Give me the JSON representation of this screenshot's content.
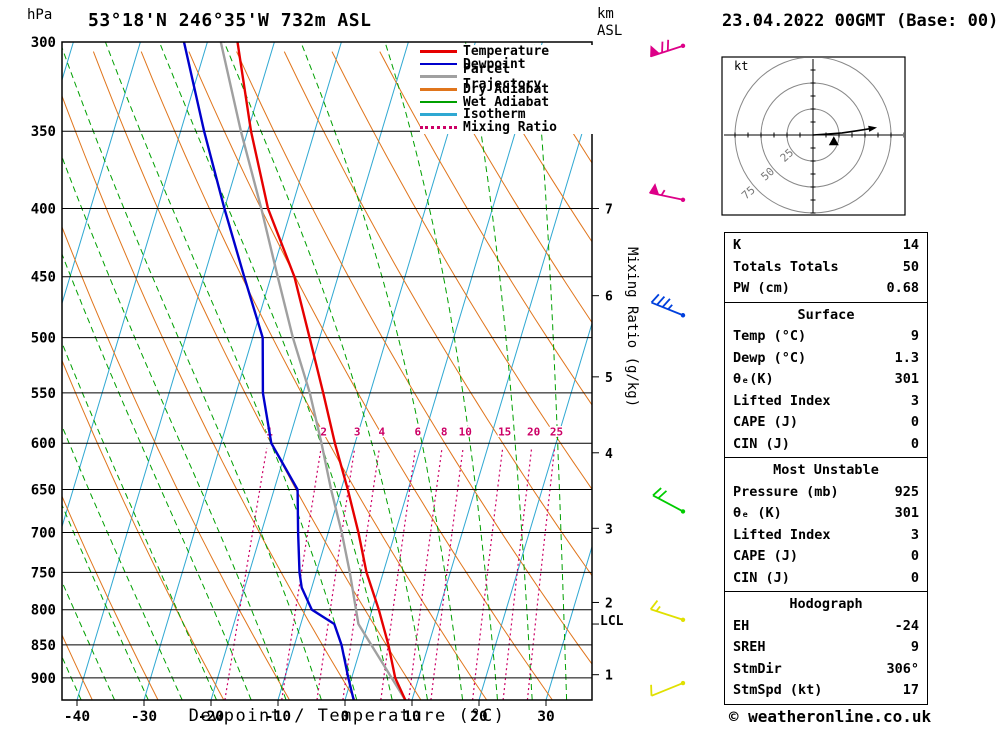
{
  "header": {
    "station_title": "53°18'N 246°35'W 732m ASL",
    "date_title": "23.04.2022 00GMT (Base: 00)"
  },
  "axes": {
    "pressure_unit": "hPa",
    "altitude_unit_line1": "km",
    "altitude_unit_line2": "ASL",
    "xlabel": "Dewpoint / Temperature (°C)",
    "mixing_ratio_label": "Mixing Ratio (g/kg)",
    "lcl_label": "LCL",
    "hodograph_unit": "kt"
  },
  "legend": [
    {
      "label": "Temperature",
      "color": "#e60000",
      "style": "solid"
    },
    {
      "label": "Dewpoint",
      "color": "#0000cc",
      "style": "solid"
    },
    {
      "label": "Parcel Trajectory",
      "color": "#a0a0a0",
      "style": "solid"
    },
    {
      "label": "Dry Adiabat",
      "color": "#e0751c",
      "style": "solid"
    },
    {
      "label": "Wet Adiabat",
      "color": "#00a000",
      "style": "solid"
    },
    {
      "label": "Isotherm",
      "color": "#2fa8d2",
      "style": "solid"
    },
    {
      "label": "Mixing Ratio",
      "color": "#cc0066",
      "style": "dotted"
    }
  ],
  "table": {
    "sections": [
      {
        "header": null,
        "rows": [
          [
            "K",
            "14"
          ],
          [
            "Totals Totals",
            "50"
          ],
          [
            "PW (cm)",
            "0.68"
          ]
        ]
      },
      {
        "header": "Surface",
        "rows": [
          [
            "Temp (°C)",
            "9"
          ],
          [
            "Dewp (°C)",
            "1.3"
          ],
          [
            "θₑ(K)",
            "301"
          ],
          [
            "Lifted Index",
            "3"
          ],
          [
            "CAPE (J)",
            "0"
          ],
          [
            "CIN (J)",
            "0"
          ]
        ]
      },
      {
        "header": "Most Unstable",
        "rows": [
          [
            "Pressure (mb)",
            "925"
          ],
          [
            "θₑ (K)",
            "301"
          ],
          [
            "Lifted Index",
            "3"
          ],
          [
            "CAPE (J)",
            "0"
          ],
          [
            "CIN (J)",
            "0"
          ]
        ]
      },
      {
        "header": "Hodograph",
        "rows": [
          [
            "EH",
            "-24"
          ],
          [
            "SREH",
            "9"
          ],
          [
            "StmDir",
            "306°"
          ],
          [
            "StmSpd (kt)",
            "17"
          ]
        ]
      }
    ]
  },
  "footer": {
    "copyright": "© weatheronline.co.uk"
  },
  "chart_data": {
    "type": "line",
    "subtype": "skew-t-log-p-sounding",
    "title": "53°18'N 246°35'W 732m ASL",
    "x_axis": {
      "label": "Dewpoint / Temperature (°C)",
      "ticks": [
        -40,
        -30,
        -20,
        -10,
        0,
        10,
        20,
        30
      ]
    },
    "y_axis": {
      "label": "hPa",
      "scale": "log",
      "range": [
        300,
        935
      ],
      "ticks": [
        300,
        350,
        400,
        450,
        500,
        550,
        600,
        650,
        700,
        750,
        800,
        850,
        900
      ]
    },
    "km_ticks": [
      {
        "km": 7,
        "p": 400
      },
      {
        "km": 6,
        "p": 465
      },
      {
        "km": 5,
        "p": 535
      },
      {
        "km": 4,
        "p": 610
      },
      {
        "km": 3,
        "p": 695
      },
      {
        "km": 2,
        "p": 790
      },
      {
        "km": 1,
        "p": 895
      }
    ],
    "lcl_pressure_hpa": 820,
    "isotherm_step_c": 10,
    "dry_adiabat_step_k": 10,
    "wet_adiabat_step_c": 5,
    "mixing_ratio_lines_gkg": [
      1,
      2,
      3,
      4,
      6,
      8,
      10,
      15,
      20,
      25
    ],
    "colors": {
      "temperature": "#e60000",
      "dewpoint": "#0000cc",
      "parcel": "#a0a0a0",
      "dry_adiabat": "#e0751c",
      "wet_adiabat": "#00a000",
      "isotherm": "#2fa8d2",
      "mixing_ratio": "#cc0066"
    },
    "series": [
      {
        "name": "Parcel Trajectory",
        "color": "#a0a0a0",
        "points": [
          [
            935,
            9
          ],
          [
            820,
            -1.4
          ],
          [
            750,
            -5
          ],
          [
            700,
            -8
          ],
          [
            650,
            -11.5
          ],
          [
            600,
            -15
          ],
          [
            550,
            -19
          ],
          [
            500,
            -24
          ],
          [
            450,
            -29
          ],
          [
            400,
            -34.5
          ],
          [
            350,
            -41
          ],
          [
            300,
            -48
          ]
        ]
      },
      {
        "name": "Dewpoint",
        "color": "#0000cc",
        "points": [
          [
            935,
            1.3
          ],
          [
            900,
            -0.5
          ],
          [
            850,
            -3
          ],
          [
            820,
            -5
          ],
          [
            800,
            -9
          ],
          [
            770,
            -11.5
          ],
          [
            750,
            -12.5
          ],
          [
            700,
            -14.5
          ],
          [
            650,
            -16.5
          ],
          [
            600,
            -22.5
          ],
          [
            550,
            -26
          ],
          [
            500,
            -28.5
          ],
          [
            450,
            -34
          ],
          [
            400,
            -40
          ],
          [
            350,
            -46.5
          ],
          [
            300,
            -53.5
          ]
        ]
      },
      {
        "name": "Temperature",
        "color": "#e60000",
        "points": [
          [
            935,
            9
          ],
          [
            900,
            6.5
          ],
          [
            850,
            4
          ],
          [
            800,
            1
          ],
          [
            750,
            -2.5
          ],
          [
            700,
            -5.5
          ],
          [
            650,
            -9
          ],
          [
            600,
            -13
          ],
          [
            550,
            -17
          ],
          [
            500,
            -21.5
          ],
          [
            450,
            -26.5
          ],
          [
            400,
            -33.5
          ],
          [
            350,
            -39.5
          ],
          [
            300,
            -45.5
          ]
        ]
      }
    ],
    "wind_barbs": [
      {
        "p": 302,
        "color": "#dd0088",
        "pennants": 1,
        "fulls": 2,
        "halfs": 0,
        "tilt": -18
      },
      {
        "p": 394,
        "color": "#dd0088",
        "pennants": 1,
        "fulls": 0,
        "halfs": 1,
        "tilt": 12
      },
      {
        "p": 481,
        "color": "#0040dd",
        "pennants": 0,
        "fulls": 3,
        "halfs": 1,
        "tilt": 22
      },
      {
        "p": 675,
        "color": "#00cc00",
        "pennants": 0,
        "fulls": 2,
        "halfs": 0,
        "tilt": 28
      },
      {
        "p": 814,
        "color": "#e0e000",
        "pennants": 0,
        "fulls": 1,
        "halfs": 1,
        "tilt": 18
      },
      {
        "p": 908,
        "color": "#e0e000",
        "pennants": 0,
        "fulls": 1,
        "halfs": 0,
        "tilt": -22
      }
    ],
    "hodograph": {
      "rings_kt": [
        25,
        50,
        75
      ],
      "trace_kt": [
        [
          0,
          0
        ],
        [
          14,
          1
        ],
        [
          28,
          2
        ],
        [
          42,
          4
        ],
        [
          54,
          6
        ]
      ],
      "storm_motion_kt": [
        20,
        -6
      ]
    }
  }
}
